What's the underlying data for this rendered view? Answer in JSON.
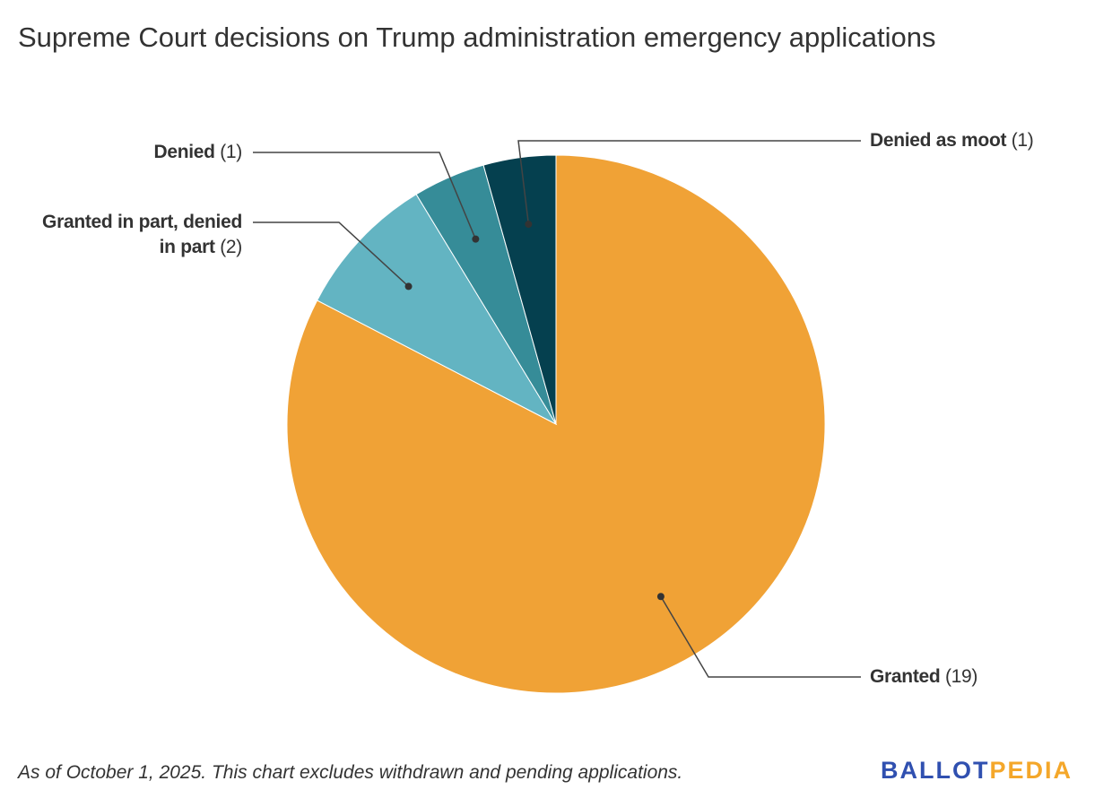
{
  "title": "Supreme Court decisions on Trump administration emergency applications",
  "footnote": "As of October 1, 2025. This chart excludes withdrawn and pending applications.",
  "logo": {
    "part1": "BALLOT",
    "part2": "PEDIA",
    "colors": [
      "#3050B0",
      "#F4A72A"
    ]
  },
  "chart_data": {
    "type": "pie",
    "title": "Supreme Court decisions on Trump administration emergency applications",
    "start": "12 o'clock, clockwise",
    "slices": [
      {
        "name": "Granted",
        "value": 19,
        "count_label": "(19)",
        "color": "#F0A236"
      },
      {
        "name": "Granted in part, denied in part",
        "name_line1": "Granted in part, denied",
        "name_line2": "in part",
        "value": 2,
        "count_label": "(2)",
        "color": "#63B4C2"
      },
      {
        "name": "Denied",
        "value": 1,
        "count_label": "(1)",
        "color": "#368C98"
      },
      {
        "name": "Denied as moot",
        "value": 1,
        "count_label": "(1)",
        "color": "#05404F"
      }
    ]
  }
}
